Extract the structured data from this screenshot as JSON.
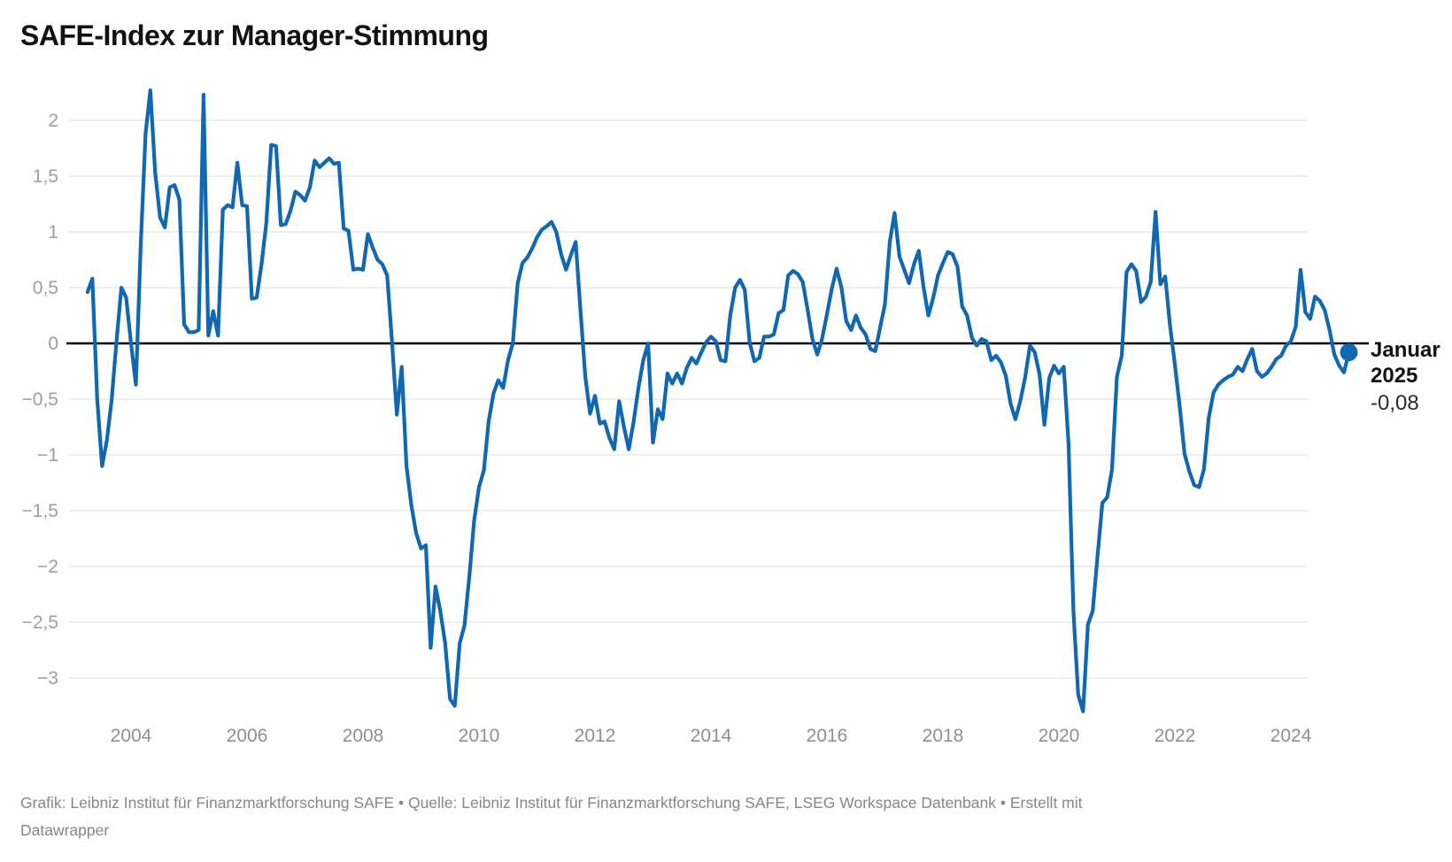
{
  "header": {
    "title": "SAFE-Index zur Manager-Stimmung"
  },
  "annotation": {
    "line1": "Januar",
    "line2": "2025",
    "value": "-0,08"
  },
  "footer": {
    "line1": "Grafik: Leibniz Institut für Finanzmarktforschung SAFE • Quelle: Leibniz Institut für Finanzmarktforschung SAFE, LSEG Workspace Datenbank • Erstellt mit",
    "line2": "Datawrapper"
  },
  "colors": {
    "line": "#1168b2",
    "zero_line": "#000000",
    "gridline": "#e9e9e9",
    "axis_label": "#9d9d9d",
    "title": "#111111",
    "footer": "#868686"
  },
  "chart_data": {
    "type": "line",
    "title": "SAFE-Index zur Manager-Stimmung",
    "xlabel": "",
    "ylabel": "",
    "ylim": [
      -3.5,
      2.35
    ],
    "grid": true,
    "legend_position": "none",
    "frequency": "monthly",
    "start": "2003-04",
    "end": "2025-01",
    "y_ticks": [
      {
        "label": "2",
        "value": 2
      },
      {
        "label": "1,5",
        "value": 1.5
      },
      {
        "label": "1",
        "value": 1
      },
      {
        "label": "0,5",
        "value": 0.5
      },
      {
        "label": "0",
        "value": 0
      },
      {
        "label": "−0,5",
        "value": -0.5
      },
      {
        "label": "−1",
        "value": -1
      },
      {
        "label": "−1,5",
        "value": -1.5
      },
      {
        "label": "−2",
        "value": -2
      },
      {
        "label": "−2,5",
        "value": -2.5
      },
      {
        "label": "−3",
        "value": -3
      }
    ],
    "x_ticks": [
      2004,
      2006,
      2008,
      2010,
      2012,
      2014,
      2016,
      2018,
      2020,
      2022,
      2024
    ],
    "last_point": {
      "label": "Januar 2025",
      "value": -0.08
    },
    "series": [
      {
        "year": 2003,
        "start_month": 4,
        "values": [
          0.46,
          0.58,
          -0.5,
          -1.1,
          -0.87,
          -0.5,
          0.02,
          0.5,
          0.41
        ]
      },
      {
        "year": 2004,
        "values": [
          0.0,
          -0.37,
          0.87,
          1.88,
          2.27,
          1.53,
          1.13,
          1.04,
          1.4,
          1.42,
          1.29,
          0.17
        ]
      },
      {
        "year": 2005,
        "values": [
          0.1,
          0.1,
          0.12,
          2.23,
          0.07,
          0.29,
          0.07,
          1.2,
          1.24,
          1.22,
          1.62,
          1.24
        ]
      },
      {
        "year": 2006,
        "values": [
          1.23,
          0.4,
          0.41,
          0.71,
          1.08,
          1.78,
          1.77,
          1.06,
          1.07,
          1.19,
          1.36,
          1.33
        ]
      },
      {
        "year": 2007,
        "values": [
          1.28,
          1.4,
          1.64,
          1.58,
          1.62,
          1.66,
          1.61,
          1.62,
          1.03,
          1.01,
          0.66,
          0.67
        ]
      },
      {
        "year": 2008,
        "values": [
          0.66,
          0.98,
          0.86,
          0.75,
          0.71,
          0.61,
          0.01,
          -0.64,
          -0.21,
          -1.1,
          -1.45,
          -1.7
        ]
      },
      {
        "year": 2009,
        "values": [
          -1.84,
          -1.81,
          -2.73,
          -2.18,
          -2.4,
          -2.69,
          -3.19,
          -3.25,
          -2.69,
          -2.53,
          -2.09,
          -1.59
        ]
      },
      {
        "year": 2010,
        "values": [
          -1.29,
          -1.14,
          -0.7,
          -0.45,
          -0.33,
          -0.4,
          -0.15,
          0.0,
          0.54,
          0.72,
          0.77,
          0.85
        ]
      },
      {
        "year": 2011,
        "values": [
          0.95,
          1.02,
          1.05,
          1.09,
          1.0,
          0.8,
          0.66,
          0.79,
          0.91,
          0.3,
          -0.3,
          -0.63
        ]
      },
      {
        "year": 2012,
        "values": [
          -0.47,
          -0.72,
          -0.7,
          -0.85,
          -0.95,
          -0.52,
          -0.75,
          -0.95,
          -0.7,
          -0.4,
          -0.15,
          0.0
        ]
      },
      {
        "year": 2013,
        "values": [
          -0.89,
          -0.59,
          -0.68,
          -0.27,
          -0.36,
          -0.27,
          -0.36,
          -0.22,
          -0.13,
          -0.18,
          -0.08,
          0.01
        ]
      },
      {
        "year": 2014,
        "values": [
          0.06,
          0.02,
          -0.15,
          -0.16,
          0.25,
          0.5,
          0.57,
          0.48,
          0.01,
          -0.16,
          -0.13,
          0.06
        ]
      },
      {
        "year": 2015,
        "values": [
          0.06,
          0.08,
          0.27,
          0.3,
          0.61,
          0.65,
          0.62,
          0.55,
          0.3,
          0.04,
          -0.1,
          0.04
        ]
      },
      {
        "year": 2016,
        "values": [
          0.26,
          0.49,
          0.67,
          0.5,
          0.2,
          0.12,
          0.25,
          0.14,
          0.08,
          -0.05,
          -0.07,
          0.14
        ]
      },
      {
        "year": 2017,
        "values": [
          0.35,
          0.91,
          1.17,
          0.78,
          0.66,
          0.54,
          0.71,
          0.83,
          0.5,
          0.25,
          0.41,
          0.61
        ]
      },
      {
        "year": 2018,
        "values": [
          0.72,
          0.82,
          0.8,
          0.69,
          0.33,
          0.25,
          0.05,
          -0.02,
          0.04,
          0.02,
          -0.15,
          -0.11
        ]
      },
      {
        "year": 2019,
        "values": [
          -0.17,
          -0.29,
          -0.54,
          -0.68,
          -0.52,
          -0.31,
          -0.02,
          -0.08,
          -0.28,
          -0.73,
          -0.31,
          -0.2
        ]
      },
      {
        "year": 2020,
        "values": [
          -0.27,
          -0.21,
          -0.9,
          -2.4,
          -3.15,
          -3.3,
          -2.52,
          -2.4,
          -1.9,
          -1.43,
          -1.38,
          -1.13
        ]
      },
      {
        "year": 2021,
        "values": [
          -0.3,
          -0.11,
          0.64,
          0.71,
          0.65,
          0.37,
          0.42,
          0.55,
          1.18,
          0.53,
          0.6,
          0.16
        ]
      },
      {
        "year": 2022,
        "values": [
          -0.19,
          -0.57,
          -0.99,
          -1.15,
          -1.27,
          -1.29,
          -1.13,
          -0.67,
          -0.44,
          -0.37,
          -0.33,
          -0.3
        ]
      },
      {
        "year": 2023,
        "values": [
          -0.28,
          -0.21,
          -0.25,
          -0.14,
          -0.05,
          -0.25,
          -0.3,
          -0.27,
          -0.21,
          -0.14,
          -0.11,
          -0.02
        ]
      },
      {
        "year": 2024,
        "values": [
          0.02,
          0.15,
          0.66,
          0.28,
          0.22,
          0.42,
          0.38,
          0.3,
          0.12,
          -0.1,
          -0.2,
          -0.26
        ]
      },
      {
        "year": 2025,
        "values": [
          -0.08
        ]
      }
    ]
  }
}
